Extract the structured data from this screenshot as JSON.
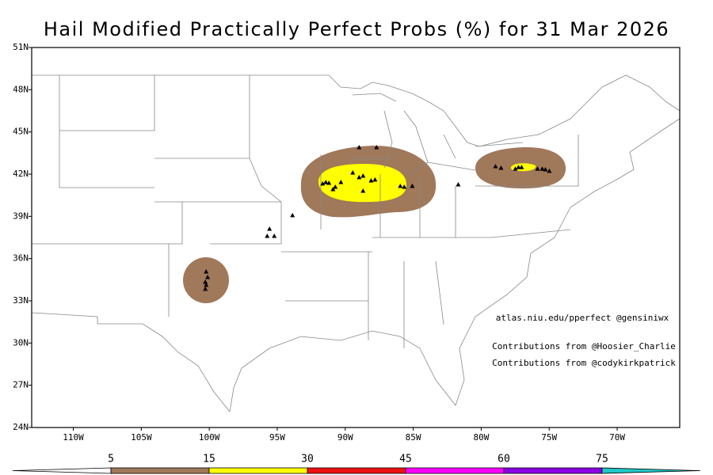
{
  "title": "Hail Modified Practically Perfect Probs (%) for 31 Mar 2026",
  "map": {
    "lon_range": [
      -113.06,
      -65.4
    ],
    "lat_range": [
      24,
      51
    ],
    "lon_ticks": [
      {
        "value": -110,
        "label": "110W"
      },
      {
        "value": -105,
        "label": "105W"
      },
      {
        "value": -100,
        "label": "100W"
      },
      {
        "value": -95,
        "label": "95W"
      },
      {
        "value": -90,
        "label": "90W"
      },
      {
        "value": -85,
        "label": "85W"
      },
      {
        "value": -80,
        "label": "80W"
      },
      {
        "value": -75,
        "label": "75W"
      },
      {
        "value": -70,
        "label": "70W"
      }
    ],
    "lat_ticks": [
      {
        "value": 24,
        "label": "24N"
      },
      {
        "value": 27,
        "label": "27N"
      },
      {
        "value": 30,
        "label": "30N"
      },
      {
        "value": 33,
        "label": "33N"
      },
      {
        "value": 36,
        "label": "36N"
      },
      {
        "value": 39,
        "label": "39N"
      },
      {
        "value": 42,
        "label": "42N"
      },
      {
        "value": 45,
        "label": "45N"
      },
      {
        "value": 48,
        "label": "48N"
      },
      {
        "value": 51,
        "label": "51N"
      }
    ]
  },
  "reports": [
    [
      -100.23,
      35.08
    ],
    [
      -100.12,
      34.69
    ],
    [
      -100.29,
      34.35
    ],
    [
      -100.23,
      34.13
    ],
    [
      -100.29,
      33.85
    ],
    [
      -95.57,
      38.12
    ],
    [
      -95.74,
      37.61
    ],
    [
      -95.22,
      37.61
    ],
    [
      -93.88,
      39.08
    ],
    [
      -88.98,
      43.91
    ],
    [
      -87.7,
      43.91
    ],
    [
      -91.66,
      41.33
    ],
    [
      -91.43,
      41.44
    ],
    [
      -91.2,
      41.38
    ],
    [
      -90.73,
      41.1
    ],
    [
      -90.32,
      41.44
    ],
    [
      -90.9,
      40.93
    ],
    [
      -89.45,
      42.11
    ],
    [
      -88.98,
      41.78
    ],
    [
      -88.69,
      40.82
    ],
    [
      -88.1,
      41.55
    ],
    [
      -87.81,
      41.61
    ],
    [
      -85.95,
      41.16
    ],
    [
      -85.66,
      41.1
    ],
    [
      -85.07,
      41.16
    ],
    [
      -88.69,
      41.89
    ],
    [
      -81.69,
      41.27
    ],
    [
      -78.95,
      42.56
    ],
    [
      -78.54,
      42.45
    ],
    [
      -77.49,
      42.39
    ],
    [
      -77.26,
      42.5
    ],
    [
      -77.03,
      42.5
    ],
    [
      -75.86,
      42.39
    ],
    [
      -75.51,
      42.39
    ],
    [
      -75.28,
      42.34
    ],
    [
      -74.99,
      42.23
    ]
  ],
  "credits": [
    "atlas.niu.edu/pperfect @gensiniwx",
    "Contributions from @Hoosier_Charlie",
    "Contributions from @codykirkpatrick"
  ],
  "colorbar": {
    "levels": [
      5,
      15,
      30,
      45,
      60,
      75
    ],
    "colors": [
      "#a0785a",
      "#ffff00",
      "#ee1111",
      "#ff00ff",
      "#8c00e6",
      "#20c8c8"
    ]
  }
}
